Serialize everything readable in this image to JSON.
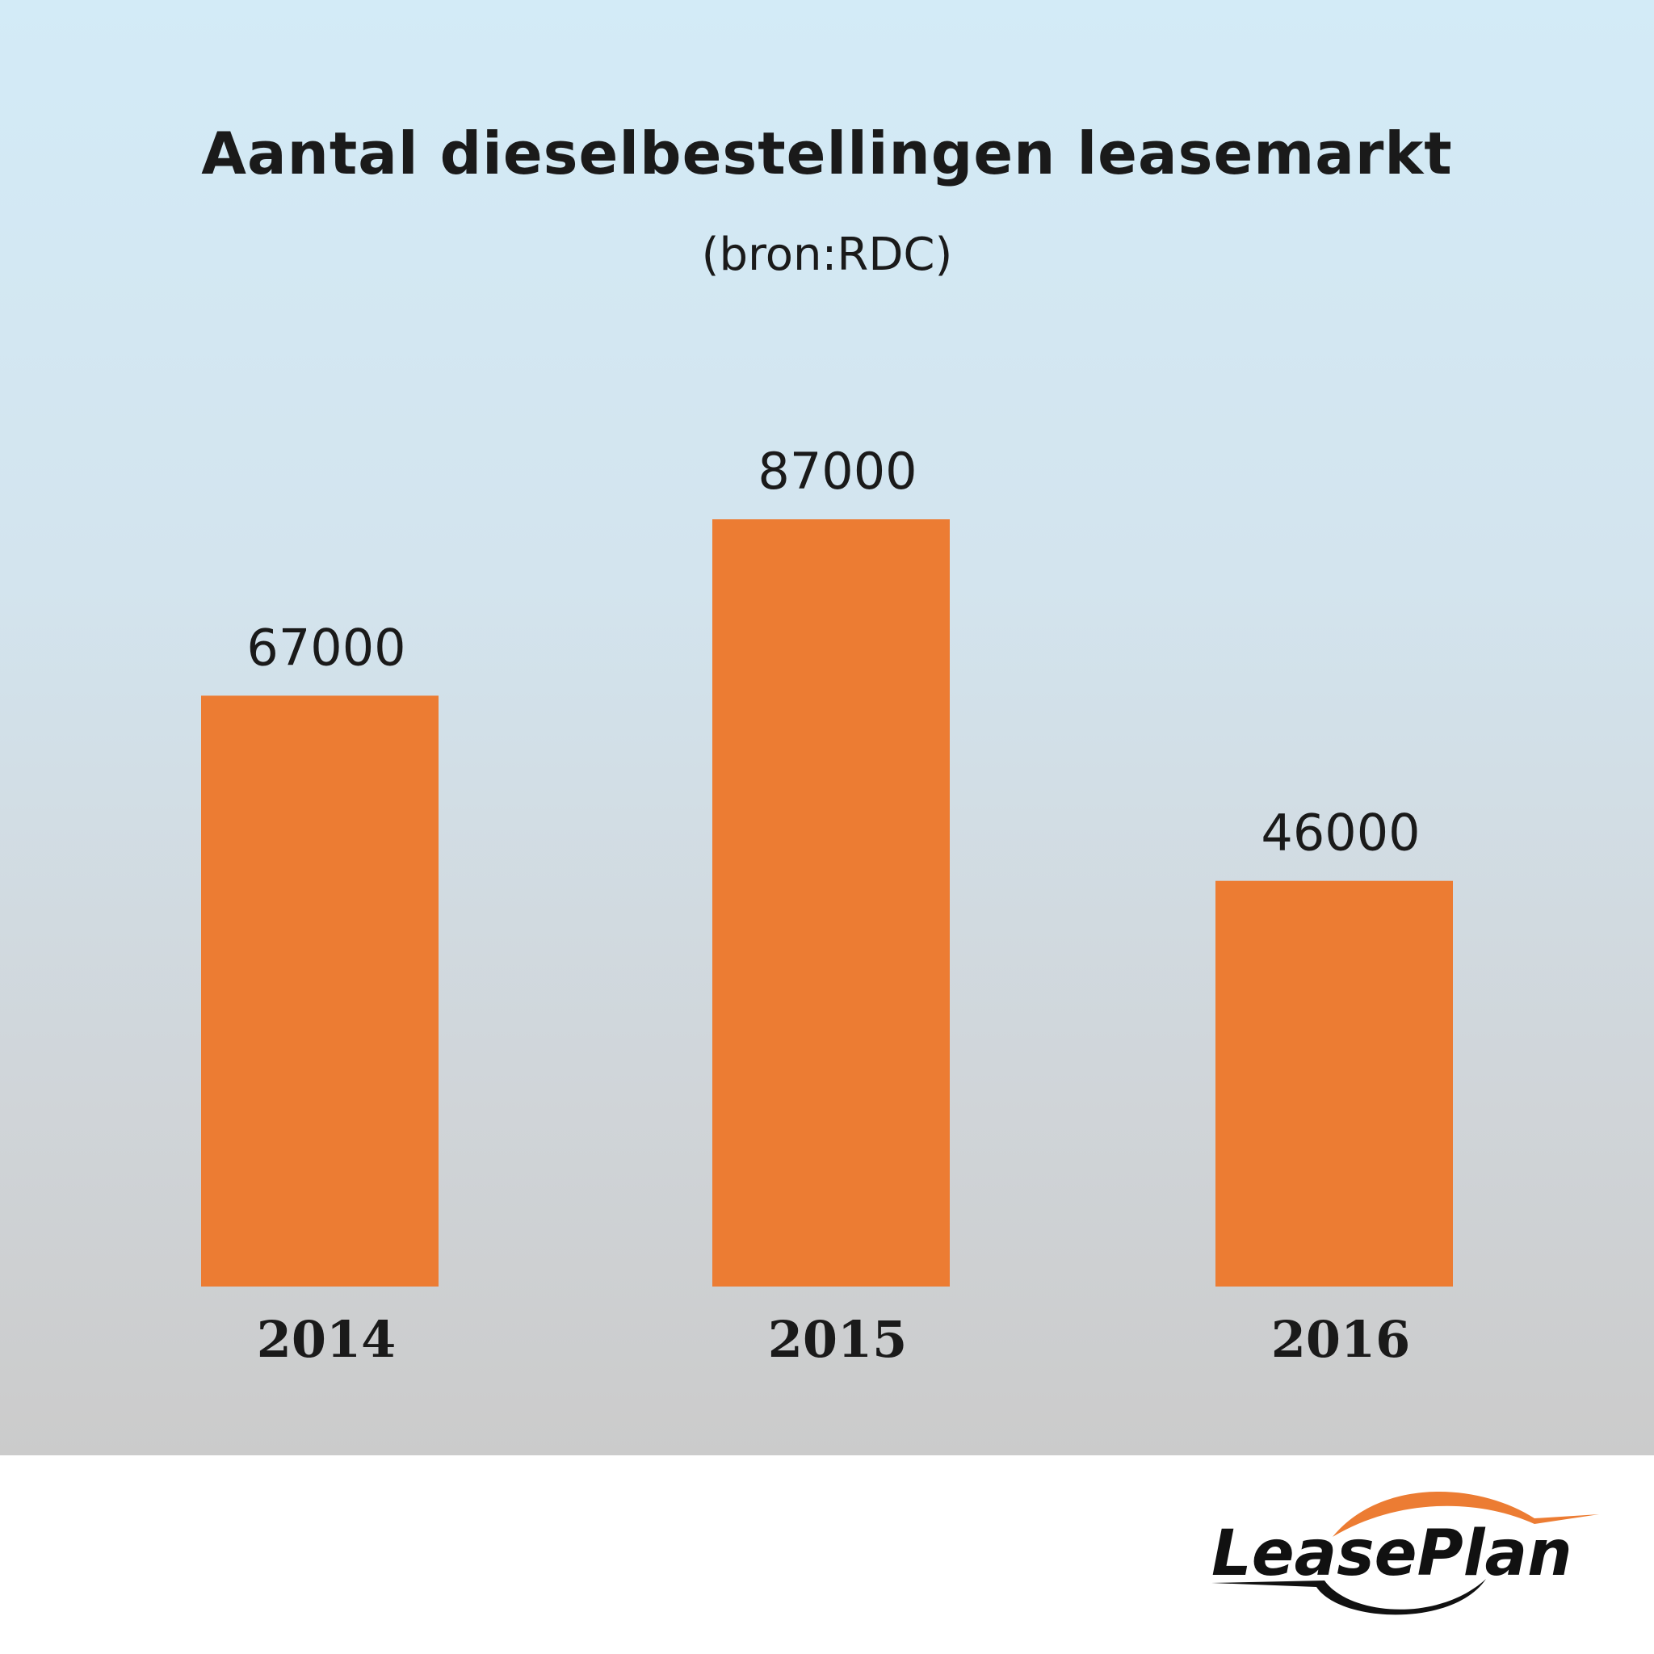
{
  "colors": {
    "bar": "#ec7c33",
    "text": "#1a1a1a",
    "logo_accent": "#ec7c33"
  },
  "logo": {
    "text": "LeasePlan"
  },
  "chart_data": {
    "type": "bar",
    "title": "Aantal dieselbestellingen leasemarkt",
    "subtitle": "(bron:RDC)",
    "categories": [
      "2014",
      "2015",
      "2016"
    ],
    "values": [
      67000,
      87000,
      46000
    ],
    "data_labels": [
      "67000",
      "87000",
      "46000"
    ],
    "ylim": [
      0,
      95000
    ],
    "grid": false,
    "legend": "none"
  }
}
